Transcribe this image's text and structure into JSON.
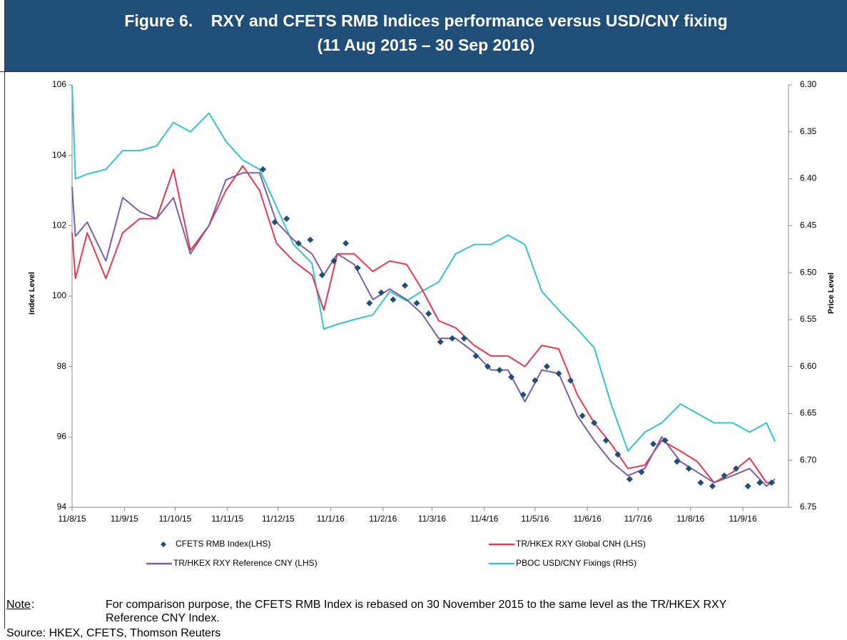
{
  "chart_data": {
    "type": "line",
    "title": "Figure 6.    RXY and CFETS RMB Indices performance versus USD/CNY fixing",
    "subtitle": "(11 Aug 2015 – 30 Sep 2016)",
    "ylabel": "Index Level",
    "y2label": "Price Level",
    "xlim": [
      "2015-08-11",
      "2016-10-08"
    ],
    "xticks": [
      {
        "value": "2015-08-11",
        "label": "11/8/15"
      },
      {
        "value": "2015-09-11",
        "label": "11/9/15"
      },
      {
        "value": "2015-10-11",
        "label": "11/10/15"
      },
      {
        "value": "2015-11-11",
        "label": "11/11/15"
      },
      {
        "value": "2015-12-11",
        "label": "11/12/15"
      },
      {
        "value": "2016-01-11",
        "label": "11/1/16"
      },
      {
        "value": "2016-02-11",
        "label": "11/2/16"
      },
      {
        "value": "2016-03-11",
        "label": "11/3/16"
      },
      {
        "value": "2016-04-11",
        "label": "11/4/16"
      },
      {
        "value": "2016-05-11",
        "label": "11/5/16"
      },
      {
        "value": "2016-06-11",
        "label": "11/6/16"
      },
      {
        "value": "2016-07-11",
        "label": "11/7/16"
      },
      {
        "value": "2016-08-11",
        "label": "11/8/16"
      },
      {
        "value": "2016-09-11",
        "label": "11/9/16"
      }
    ],
    "ylim": [
      94,
      106
    ],
    "yticks": [
      94,
      96,
      98,
      100,
      102,
      104,
      106
    ],
    "y2lim": [
      6.75,
      6.3
    ],
    "y2ticks": [
      {
        "value": 6.3,
        "label": "6.30"
      },
      6.35,
      {
        "value": 6.4,
        "label": "6.40"
      },
      6.45,
      {
        "value": 6.5,
        "label": "6.50"
      },
      6.55,
      {
        "value": 6.6,
        "label": "6.60"
      },
      6.65,
      {
        "value": 6.7,
        "label": "6.70"
      },
      6.75
    ],
    "x": [
      "2015-08-11",
      "2015-08-13",
      "2015-08-20",
      "2015-08-31",
      "2015-09-10",
      "2015-09-20",
      "2015-09-30",
      "2015-10-10",
      "2015-10-20",
      "2015-10-31",
      "2015-11-10",
      "2015-11-20",
      "2015-11-30",
      "2015-12-10",
      "2015-12-20",
      "2015-12-31",
      "2016-01-07",
      "2016-01-15",
      "2016-01-25",
      "2016-02-05",
      "2016-02-15",
      "2016-02-25",
      "2016-03-05",
      "2016-03-15",
      "2016-03-25",
      "2016-04-05",
      "2016-04-15",
      "2016-04-25",
      "2016-05-05",
      "2016-05-15",
      "2016-05-25",
      "2016-06-05",
      "2016-06-15",
      "2016-06-25",
      "2016-07-05",
      "2016-07-15",
      "2016-07-25",
      "2016-08-05",
      "2016-08-15",
      "2016-08-25",
      "2016-09-05",
      "2016-09-15",
      "2016-09-25",
      "2016-09-30"
    ],
    "series": [
      {
        "name": "CFETS RMB Index(LHS)",
        "color": "#1f4e79",
        "mark": "diamond",
        "x": [
          "2015-12-02",
          "2015-12-09",
          "2015-12-16",
          "2015-12-23",
          "2015-12-30",
          "2016-01-06",
          "2016-01-13",
          "2016-01-20",
          "2016-01-27",
          "2016-02-03",
          "2016-02-10",
          "2016-02-17",
          "2016-02-24",
          "2016-03-02",
          "2016-03-09",
          "2016-03-16",
          "2016-03-23",
          "2016-03-30",
          "2016-04-06",
          "2016-04-13",
          "2016-04-20",
          "2016-04-27",
          "2016-05-04",
          "2016-05-11",
          "2016-05-18",
          "2016-05-25",
          "2016-06-01",
          "2016-06-08",
          "2016-06-15",
          "2016-06-22",
          "2016-06-29",
          "2016-07-06",
          "2016-07-13",
          "2016-07-20",
          "2016-07-27",
          "2016-08-03",
          "2016-08-10",
          "2016-08-17",
          "2016-08-24",
          "2016-08-31",
          "2016-09-07",
          "2016-09-14",
          "2016-09-21",
          "2016-09-28"
        ],
        "values": [
          103.6,
          102.1,
          102.2,
          101.5,
          101.6,
          100.6,
          101.0,
          101.5,
          100.8,
          99.8,
          100.1,
          99.9,
          100.3,
          99.8,
          99.5,
          98.7,
          98.8,
          98.8,
          98.3,
          98.0,
          97.9,
          97.7,
          97.2,
          97.6,
          98.0,
          97.8,
          97.6,
          96.6,
          96.4,
          95.9,
          95.5,
          94.8,
          95.0,
          95.8,
          95.9,
          95.3,
          95.1,
          94.7,
          94.6,
          94.9,
          95.1,
          94.6,
          94.7,
          94.7
        ]
      },
      {
        "name": "TR/HKEX RXY Global CNH (LHS)",
        "color": "#e8384f",
        "mark": "line",
        "values": [
          101.8,
          100.5,
          101.8,
          100.5,
          101.8,
          102.2,
          102.2,
          103.6,
          101.3,
          102.0,
          103.0,
          103.7,
          103.0,
          101.5,
          101.0,
          100.6,
          99.6,
          101.2,
          101.2,
          100.7,
          101.0,
          100.9,
          100.2,
          99.3,
          99.1,
          98.6,
          98.3,
          98.3,
          98.0,
          98.6,
          98.5,
          97.2,
          96.4,
          95.8,
          95.1,
          95.2,
          95.9,
          95.6,
          95.3,
          94.7,
          95.0,
          95.4,
          94.7,
          94.7
        ]
      },
      {
        "name": "TR/HKEX RXY Reference CNY (LHS)",
        "color": "#7b5ea7",
        "mark": "line",
        "values": [
          103.1,
          101.7,
          102.1,
          101.0,
          102.8,
          102.4,
          102.2,
          102.8,
          101.2,
          102.0,
          103.3,
          103.5,
          103.5,
          102.1,
          101.6,
          101.2,
          100.6,
          101.2,
          100.9,
          99.9,
          100.2,
          99.9,
          99.5,
          98.8,
          98.8,
          98.4,
          97.9,
          97.9,
          97.0,
          97.9,
          97.8,
          96.6,
          95.9,
          95.3,
          94.9,
          95.1,
          96.0,
          95.3,
          95.0,
          94.7,
          94.9,
          95.1,
          94.6,
          94.8
        ]
      },
      {
        "name": "PBOC USD/CNY Fixings (RHS)",
        "color": "#33c5cc",
        "mark": "line",
        "axis": "y2",
        "values": [
          6.3,
          6.4,
          6.395,
          6.39,
          6.37,
          6.37,
          6.365,
          6.34,
          6.35,
          6.33,
          6.36,
          6.38,
          6.39,
          6.43,
          6.47,
          6.49,
          6.56,
          6.555,
          6.55,
          6.545,
          6.52,
          6.53,
          6.52,
          6.51,
          6.48,
          6.47,
          6.47,
          6.46,
          6.47,
          6.52,
          6.54,
          6.56,
          6.58,
          6.64,
          6.69,
          6.67,
          6.66,
          6.64,
          6.65,
          6.66,
          6.66,
          6.67,
          6.66,
          6.68
        ]
      }
    ],
    "note_label": "Note",
    "note_text": "For comparison purpose, the CFETS RMB Index is rebased on 30 November 2015 to the same level as the TR/HKEX RXY Reference CNY Index.",
    "source": "Source: HKEX, CFETS, Thomson Reuters"
  }
}
